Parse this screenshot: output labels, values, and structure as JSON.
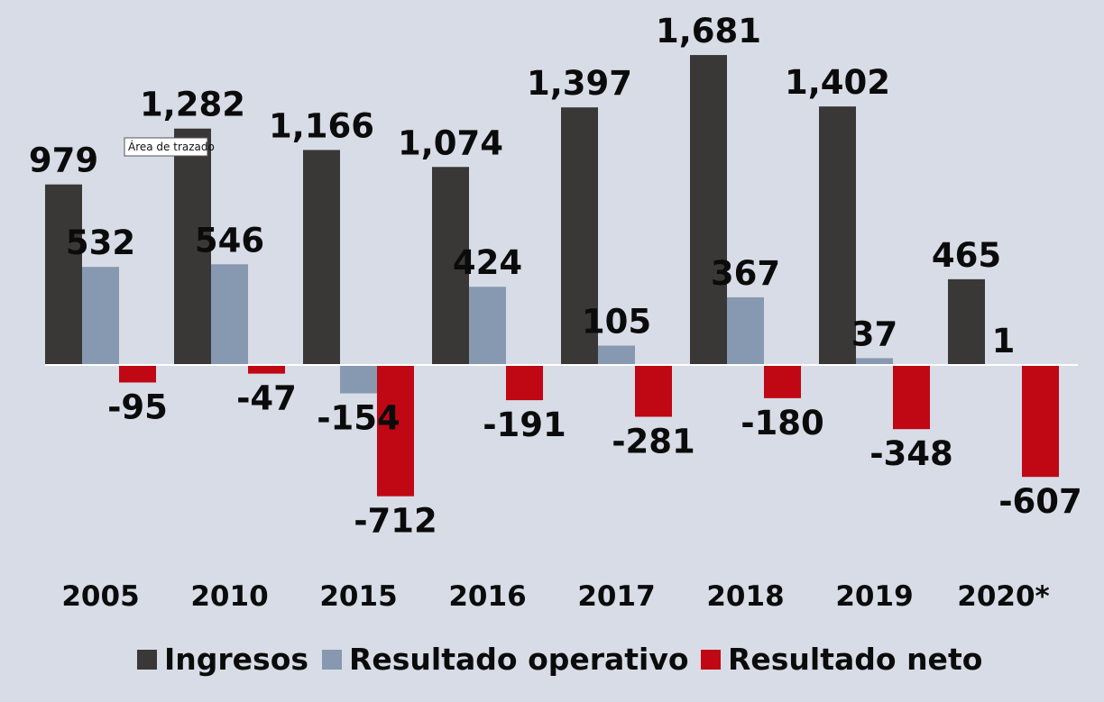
{
  "chart_data": {
    "type": "bar",
    "categories": [
      "2005",
      "2010",
      "2015",
      "2016",
      "2017",
      "2018",
      "2019",
      "2020*"
    ],
    "series": [
      {
        "name": "Ingresos",
        "color": "#3a3737",
        "values": [
          979,
          1282,
          1166,
          1074,
          1397,
          1681,
          1402,
          465
        ]
      },
      {
        "name": "Resultado operativo",
        "color": "#8799b0",
        "values": [
          532,
          546,
          -154,
          424,
          105,
          367,
          37,
          1
        ]
      },
      {
        "name": "Resultado neto",
        "color": "#c00714",
        "values": [
          -95,
          -47,
          -712,
          -191,
          -281,
          -180,
          -348,
          -607
        ]
      }
    ],
    "value_labels": [
      [
        "979",
        "1,282",
        "1,166",
        "1,074",
        "1,397",
        "1,681",
        "1,402",
        "465"
      ],
      [
        "532",
        "546",
        "-154",
        "424",
        "105",
        "367",
        "37",
        "1"
      ],
      [
        "-95",
        "-47",
        "-712",
        "-191",
        "-281",
        "-180",
        "-348",
        "-607"
      ]
    ],
    "ylim": [
      -900,
      1900
    ],
    "grid": false,
    "legend_position": "bottom",
    "tooltip": "Área de trazado"
  }
}
